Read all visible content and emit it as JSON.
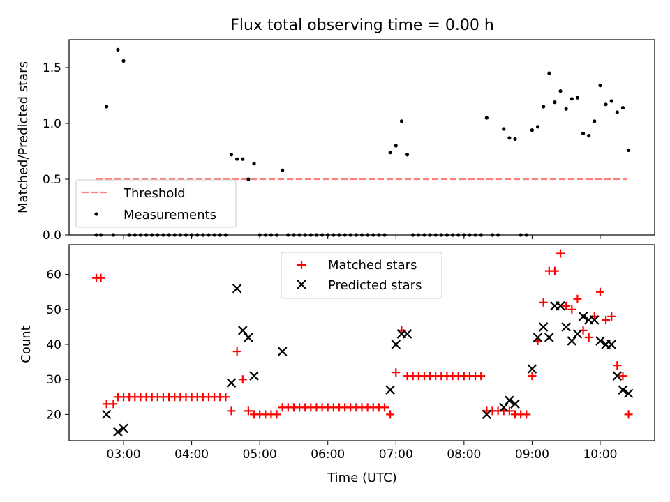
{
  "chart_data": [
    {
      "type": "scatter",
      "title": "Flux total observing time = 0.00 h",
      "xlabel": "",
      "ylabel": "Matched/Predicted stars",
      "xlim": [
        "02:12",
        "10:48"
      ],
      "ylim": [
        0,
        1.75
      ],
      "x_ticks": [
        "03:00",
        "04:00",
        "05:00",
        "06:00",
        "07:00",
        "08:00",
        "09:00",
        "10:00"
      ],
      "y_ticks": [
        "0.0",
        "0.5",
        "1.0",
        "1.5"
      ],
      "tick_label_visibility": {
        "x": false,
        "y": true
      },
      "legend": {
        "position": "lower-left",
        "entries": [
          "Threshold",
          "Measurements"
        ]
      },
      "threshold": {
        "name": "Threshold",
        "y": 0.5,
        "x_range": [
          "02:36",
          "10:24"
        ],
        "color": "#ff7f7f",
        "style": "dashed"
      },
      "series": [
        {
          "name": "Measurements",
          "marker": "dot",
          "color": "#000000",
          "points": [
            [
              "02:36",
              0
            ],
            [
              "02:40",
              0
            ],
            [
              "02:45",
              1.15
            ],
            [
              "02:51",
              0
            ],
            [
              "02:55",
              1.66
            ],
            [
              "03:00",
              1.56
            ],
            [
              "03:05",
              0
            ],
            [
              "03:10",
              0
            ],
            [
              "03:15",
              0
            ],
            [
              "03:20",
              0
            ],
            [
              "03:25",
              0
            ],
            [
              "03:30",
              0
            ],
            [
              "03:35",
              0
            ],
            [
              "03:40",
              0
            ],
            [
              "03:45",
              0
            ],
            [
              "03:50",
              0
            ],
            [
              "03:55",
              0
            ],
            [
              "04:00",
              0
            ],
            [
              "04:05",
              0
            ],
            [
              "04:10",
              0
            ],
            [
              "04:15",
              0
            ],
            [
              "04:20",
              0
            ],
            [
              "04:25",
              0
            ],
            [
              "04:30",
              0
            ],
            [
              "04:35",
              0.72
            ],
            [
              "04:40",
              0.68
            ],
            [
              "04:45",
              0.68
            ],
            [
              "04:50",
              0.5
            ],
            [
              "04:55",
              0.64
            ],
            [
              "05:00",
              0
            ],
            [
              "05:05",
              0
            ],
            [
              "05:10",
              0
            ],
            [
              "05:15",
              0
            ],
            [
              "05:20",
              0.58
            ],
            [
              "05:25",
              0
            ],
            [
              "05:30",
              0
            ],
            [
              "05:35",
              0
            ],
            [
              "05:40",
              0
            ],
            [
              "05:45",
              0
            ],
            [
              "05:50",
              0
            ],
            [
              "05:55",
              0
            ],
            [
              "06:00",
              0
            ],
            [
              "06:05",
              0
            ],
            [
              "06:10",
              0
            ],
            [
              "06:15",
              0
            ],
            [
              "06:20",
              0
            ],
            [
              "06:25",
              0
            ],
            [
              "06:30",
              0
            ],
            [
              "06:35",
              0
            ],
            [
              "06:40",
              0
            ],
            [
              "06:45",
              0
            ],
            [
              "06:50",
              0
            ],
            [
              "06:55",
              0.74
            ],
            [
              "07:00",
              0.8
            ],
            [
              "07:05",
              1.02
            ],
            [
              "07:10",
              0.72
            ],
            [
              "07:15",
              0
            ],
            [
              "07:20",
              0
            ],
            [
              "07:25",
              0
            ],
            [
              "07:30",
              0
            ],
            [
              "07:35",
              0
            ],
            [
              "07:40",
              0
            ],
            [
              "07:45",
              0
            ],
            [
              "07:50",
              0
            ],
            [
              "07:55",
              0
            ],
            [
              "08:00",
              0
            ],
            [
              "08:05",
              0
            ],
            [
              "08:10",
              0
            ],
            [
              "08:15",
              0
            ],
            [
              "08:20",
              1.05
            ],
            [
              "08:25",
              0
            ],
            [
              "08:30",
              0
            ],
            [
              "08:35",
              0.95
            ],
            [
              "08:40",
              0.87
            ],
            [
              "08:45",
              0.86
            ],
            [
              "08:50",
              0
            ],
            [
              "08:55",
              0
            ],
            [
              "09:00",
              0.94
            ],
            [
              "09:05",
              0.97
            ],
            [
              "09:10",
              1.15
            ],
            [
              "09:15",
              1.45
            ],
            [
              "09:20",
              1.19
            ],
            [
              "09:25",
              1.29
            ],
            [
              "09:30",
              1.13
            ],
            [
              "09:35",
              1.22
            ],
            [
              "09:40",
              1.23
            ],
            [
              "09:45",
              0.91
            ],
            [
              "09:50",
              0.89
            ],
            [
              "09:55",
              1.02
            ],
            [
              "10:00",
              1.34
            ],
            [
              "10:05",
              1.17
            ],
            [
              "10:10",
              1.2
            ],
            [
              "10:15",
              1.1
            ],
            [
              "10:20",
              1.14
            ],
            [
              "10:25",
              0.76
            ]
          ]
        }
      ]
    },
    {
      "type": "scatter",
      "title": "",
      "xlabel": "Time (UTC)",
      "ylabel": "Count",
      "xlim": [
        "02:12",
        "10:48"
      ],
      "ylim": [
        12.5,
        68.5
      ],
      "x_ticks": [
        "03:00",
        "04:00",
        "05:00",
        "06:00",
        "07:00",
        "08:00",
        "09:00",
        "10:00"
      ],
      "y_ticks": [
        "20",
        "30",
        "40",
        "50",
        "60"
      ],
      "legend": {
        "position": "top-center",
        "entries": [
          "Matched stars",
          "Predicted stars"
        ]
      },
      "series": [
        {
          "name": "Matched stars",
          "marker": "plus",
          "color": "#ff0000",
          "points": [
            [
              "02:36",
              59
            ],
            [
              "02:40",
              59
            ],
            [
              "02:45",
              23
            ],
            [
              "02:51",
              23
            ],
            [
              "02:55",
              25
            ],
            [
              "03:00",
              25
            ],
            [
              "03:05",
              25
            ],
            [
              "03:10",
              25
            ],
            [
              "03:15",
              25
            ],
            [
              "03:20",
              25
            ],
            [
              "03:25",
              25
            ],
            [
              "03:30",
              25
            ],
            [
              "03:35",
              25
            ],
            [
              "03:40",
              25
            ],
            [
              "03:45",
              25
            ],
            [
              "03:50",
              25
            ],
            [
              "03:55",
              25
            ],
            [
              "04:00",
              25
            ],
            [
              "04:05",
              25
            ],
            [
              "04:10",
              25
            ],
            [
              "04:15",
              25
            ],
            [
              "04:20",
              25
            ],
            [
              "04:25",
              25
            ],
            [
              "04:30",
              25
            ],
            [
              "04:35",
              21
            ],
            [
              "04:40",
              38
            ],
            [
              "04:45",
              30
            ],
            [
              "04:50",
              21
            ],
            [
              "04:55",
              20
            ],
            [
              "05:00",
              20
            ],
            [
              "05:05",
              20
            ],
            [
              "05:10",
              20
            ],
            [
              "05:15",
              20
            ],
            [
              "05:20",
              22
            ],
            [
              "05:25",
              22
            ],
            [
              "05:30",
              22
            ],
            [
              "05:35",
              22
            ],
            [
              "05:40",
              22
            ],
            [
              "05:45",
              22
            ],
            [
              "05:50",
              22
            ],
            [
              "05:55",
              22
            ],
            [
              "06:00",
              22
            ],
            [
              "06:05",
              22
            ],
            [
              "06:10",
              22
            ],
            [
              "06:15",
              22
            ],
            [
              "06:20",
              22
            ],
            [
              "06:25",
              22
            ],
            [
              "06:30",
              22
            ],
            [
              "06:35",
              22
            ],
            [
              "06:40",
              22
            ],
            [
              "06:45",
              22
            ],
            [
              "06:50",
              22
            ],
            [
              "06:55",
              20
            ],
            [
              "07:00",
              32
            ],
            [
              "07:05",
              44
            ],
            [
              "07:10",
              31
            ],
            [
              "07:15",
              31
            ],
            [
              "07:20",
              31
            ],
            [
              "07:25",
              31
            ],
            [
              "07:30",
              31
            ],
            [
              "07:35",
              31
            ],
            [
              "07:40",
              31
            ],
            [
              "07:45",
              31
            ],
            [
              "07:50",
              31
            ],
            [
              "07:55",
              31
            ],
            [
              "08:00",
              31
            ],
            [
              "08:05",
              31
            ],
            [
              "08:10",
              31
            ],
            [
              "08:15",
              31
            ],
            [
              "08:20",
              21
            ],
            [
              "08:25",
              21
            ],
            [
              "08:30",
              21
            ],
            [
              "08:35",
              21
            ],
            [
              "08:40",
              21
            ],
            [
              "08:45",
              20
            ],
            [
              "08:50",
              20
            ],
            [
              "08:55",
              20
            ],
            [
              "09:00",
              31
            ],
            [
              "09:05",
              41
            ],
            [
              "09:10",
              52
            ],
            [
              "09:15",
              61
            ],
            [
              "09:20",
              61
            ],
            [
              "09:25",
              66
            ],
            [
              "09:30",
              51
            ],
            [
              "09:35",
              50
            ],
            [
              "09:40",
              53
            ],
            [
              "09:45",
              44
            ],
            [
              "09:50",
              42
            ],
            [
              "09:55",
              48
            ],
            [
              "10:00",
              55
            ],
            [
              "10:05",
              47
            ],
            [
              "10:10",
              48
            ],
            [
              "10:15",
              34
            ],
            [
              "10:20",
              31
            ],
            [
              "10:25",
              20
            ]
          ]
        },
        {
          "name": "Predicted stars",
          "marker": "x",
          "color": "#000000",
          "points": [
            [
              "02:45",
              20
            ],
            [
              "02:55",
              15
            ],
            [
              "03:00",
              16
            ],
            [
              "04:35",
              29
            ],
            [
              "04:40",
              56
            ],
            [
              "04:45",
              44
            ],
            [
              "04:50",
              42
            ],
            [
              "04:55",
              31
            ],
            [
              "05:20",
              38
            ],
            [
              "06:55",
              27
            ],
            [
              "07:00",
              40
            ],
            [
              "07:05",
              43
            ],
            [
              "07:10",
              43
            ],
            [
              "08:20",
              20
            ],
            [
              "08:35",
              22
            ],
            [
              "08:40",
              24
            ],
            [
              "08:45",
              23
            ],
            [
              "09:00",
              33
            ],
            [
              "09:05",
              42
            ],
            [
              "09:10",
              45
            ],
            [
              "09:15",
              42
            ],
            [
              "09:20",
              51
            ],
            [
              "09:25",
              51
            ],
            [
              "09:30",
              45
            ],
            [
              "09:35",
              41
            ],
            [
              "09:40",
              43
            ],
            [
              "09:45",
              48
            ],
            [
              "09:50",
              47
            ],
            [
              "09:55",
              47
            ],
            [
              "10:00",
              41
            ],
            [
              "10:05",
              40
            ],
            [
              "10:10",
              40
            ],
            [
              "10:15",
              31
            ],
            [
              "10:20",
              27
            ],
            [
              "10:25",
              26
            ]
          ]
        }
      ]
    }
  ]
}
